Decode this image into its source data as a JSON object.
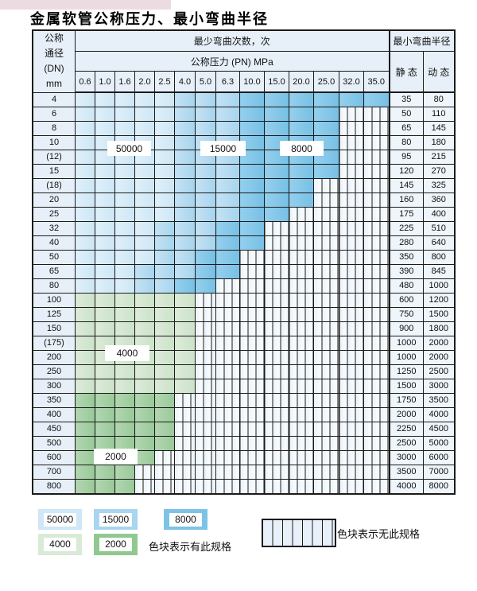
{
  "title": "金属软管公称压力、最小弯曲半径",
  "table": {
    "header": {
      "dn_label_lines": [
        "公称",
        "通径",
        "(DN)",
        "mm"
      ],
      "bend_cycles_label": "最少弯曲次数，次",
      "pressure_label": "公称压力 (PN) MPa",
      "radius_label": "最小弯曲半径",
      "static_label": "静 态",
      "dynamic_label": "动 态",
      "pn_columns": [
        "0.6",
        "1.0",
        "1.6",
        "2.0",
        "2.5",
        "4.0",
        "5.0",
        "6.3",
        "10.0",
        "15.0",
        "20.0",
        "25.0",
        "32.0",
        "35.0"
      ]
    },
    "rows": [
      {
        "dn": "4",
        "cells": [
          "50000",
          "50000",
          "50000",
          "50000",
          "50000",
          "15000",
          "15000",
          "15000",
          "8000",
          "8000",
          "8000",
          "8000",
          "8000",
          "8000"
        ],
        "static": "35",
        "dynamic": "80"
      },
      {
        "dn": "6",
        "cells": [
          "50000",
          "50000",
          "50000",
          "50000",
          "50000",
          "15000",
          "15000",
          "15000",
          "8000",
          "8000",
          "8000",
          "8000",
          "",
          ""
        ],
        "static": "50",
        "dynamic": "110"
      },
      {
        "dn": "8",
        "cells": [
          "50000",
          "50000",
          "50000",
          "50000",
          "50000",
          "15000",
          "15000",
          "15000",
          "8000",
          "8000",
          "8000",
          "8000",
          "",
          ""
        ],
        "static": "65",
        "dynamic": "145"
      },
      {
        "dn": "10",
        "cells": [
          "50000",
          "50000",
          "50000",
          "50000",
          "50000",
          "15000",
          "15000",
          "15000",
          "8000",
          "8000",
          "8000",
          "8000",
          "",
          ""
        ],
        "static": "80",
        "dynamic": "180"
      },
      {
        "dn": "(12)",
        "cells": [
          "50000",
          "50000",
          "50000",
          "50000",
          "50000",
          "15000",
          "15000",
          "15000",
          "8000",
          "8000",
          "8000",
          "8000",
          "",
          ""
        ],
        "static": "95",
        "dynamic": "215"
      },
      {
        "dn": "15",
        "cells": [
          "50000",
          "50000",
          "50000",
          "50000",
          "50000",
          "15000",
          "15000",
          "15000",
          "8000",
          "8000",
          "8000",
          "8000",
          "",
          ""
        ],
        "static": "120",
        "dynamic": "270"
      },
      {
        "dn": "(18)",
        "cells": [
          "50000",
          "50000",
          "50000",
          "50000",
          "50000",
          "15000",
          "15000",
          "15000",
          "8000",
          "8000",
          "8000",
          "",
          "",
          ""
        ],
        "static": "145",
        "dynamic": "325"
      },
      {
        "dn": "20",
        "cells": [
          "50000",
          "50000",
          "50000",
          "50000",
          "50000",
          "15000",
          "15000",
          "15000",
          "8000",
          "8000",
          "8000",
          "",
          "",
          ""
        ],
        "static": "160",
        "dynamic": "360"
      },
      {
        "dn": "25",
        "cells": [
          "50000",
          "50000",
          "50000",
          "50000",
          "50000",
          "15000",
          "15000",
          "15000",
          "8000",
          "8000",
          "",
          "",
          "",
          ""
        ],
        "static": "175",
        "dynamic": "400"
      },
      {
        "dn": "32",
        "cells": [
          "50000",
          "50000",
          "50000",
          "50000",
          "15000",
          "15000",
          "15000",
          "8000",
          "8000",
          "",
          "",
          "",
          "",
          ""
        ],
        "static": "225",
        "dynamic": "510"
      },
      {
        "dn": "40",
        "cells": [
          "50000",
          "50000",
          "50000",
          "50000",
          "15000",
          "15000",
          "15000",
          "8000",
          "8000",
          "",
          "",
          "",
          "",
          ""
        ],
        "static": "280",
        "dynamic": "640"
      },
      {
        "dn": "50",
        "cells": [
          "50000",
          "50000",
          "50000",
          "50000",
          "15000",
          "15000",
          "8000",
          "8000",
          "",
          "",
          "",
          "",
          "",
          ""
        ],
        "static": "350",
        "dynamic": "800"
      },
      {
        "dn": "65",
        "cells": [
          "50000",
          "50000",
          "50000",
          "15000",
          "15000",
          "15000",
          "8000",
          "8000",
          "",
          "",
          "",
          "",
          "",
          ""
        ],
        "static": "390",
        "dynamic": "845"
      },
      {
        "dn": "80",
        "cells": [
          "50000",
          "50000",
          "50000",
          "15000",
          "15000",
          "8000",
          "8000",
          "",
          "",
          "",
          "",
          "",
          "",
          ""
        ],
        "static": "480",
        "dynamic": "1000"
      },
      {
        "dn": "100",
        "cells": [
          "4000",
          "4000",
          "4000",
          "4000",
          "4000",
          "4000",
          "",
          "",
          "",
          "",
          "",
          "",
          "",
          ""
        ],
        "static": "600",
        "dynamic": "1200"
      },
      {
        "dn": "125",
        "cells": [
          "4000",
          "4000",
          "4000",
          "4000",
          "4000",
          "4000",
          "",
          "",
          "",
          "",
          "",
          "",
          "",
          ""
        ],
        "static": "750",
        "dynamic": "1500"
      },
      {
        "dn": "150",
        "cells": [
          "4000",
          "4000",
          "4000",
          "4000",
          "4000",
          "4000",
          "",
          "",
          "",
          "",
          "",
          "",
          "",
          ""
        ],
        "static": "900",
        "dynamic": "1800"
      },
      {
        "dn": "(175)",
        "cells": [
          "4000",
          "4000",
          "4000",
          "4000",
          "4000",
          "4000",
          "",
          "",
          "",
          "",
          "",
          "",
          "",
          ""
        ],
        "static": "1000",
        "dynamic": "2000"
      },
      {
        "dn": "200",
        "cells": [
          "4000",
          "4000",
          "4000",
          "4000",
          "4000",
          "4000",
          "",
          "",
          "",
          "",
          "",
          "",
          "",
          ""
        ],
        "static": "1000",
        "dynamic": "2000"
      },
      {
        "dn": "250",
        "cells": [
          "4000",
          "4000",
          "4000",
          "4000",
          "4000",
          "4000",
          "",
          "",
          "",
          "",
          "",
          "",
          "",
          ""
        ],
        "static": "1250",
        "dynamic": "2500"
      },
      {
        "dn": "300",
        "cells": [
          "4000",
          "4000",
          "4000",
          "4000",
          "4000",
          "4000",
          "",
          "",
          "",
          "",
          "",
          "",
          "",
          ""
        ],
        "static": "1500",
        "dynamic": "3000"
      },
      {
        "dn": "350",
        "cells": [
          "2000",
          "2000",
          "2000",
          "2000",
          "2000",
          "",
          "",
          "",
          "",
          "",
          "",
          "",
          "",
          ""
        ],
        "static": "1750",
        "dynamic": "3500"
      },
      {
        "dn": "400",
        "cells": [
          "2000",
          "2000",
          "2000",
          "2000",
          "2000",
          "",
          "",
          "",
          "",
          "",
          "",
          "",
          "",
          ""
        ],
        "static": "2000",
        "dynamic": "4000"
      },
      {
        "dn": "450",
        "cells": [
          "2000",
          "2000",
          "2000",
          "2000",
          "2000",
          "",
          "",
          "",
          "",
          "",
          "",
          "",
          "",
          ""
        ],
        "static": "2250",
        "dynamic": "4500"
      },
      {
        "dn": "500",
        "cells": [
          "2000",
          "2000",
          "2000",
          "2000",
          "2000",
          "",
          "",
          "",
          "",
          "",
          "",
          "",
          "",
          ""
        ],
        "static": "2500",
        "dynamic": "5000"
      },
      {
        "dn": "600",
        "cells": [
          "2000",
          "2000",
          "2000",
          "2000",
          "",
          "",
          "",
          "",
          "",
          "",
          "",
          "",
          "",
          ""
        ],
        "static": "3000",
        "dynamic": "6000"
      },
      {
        "dn": "700",
        "cells": [
          "2000",
          "2000",
          "2000",
          "",
          "",
          "",
          "",
          "",
          "",
          "",
          "",
          "",
          "",
          ""
        ],
        "static": "3500",
        "dynamic": "7000"
      },
      {
        "dn": "800",
        "cells": [
          "2000",
          "2000",
          "2000",
          "",
          "",
          "",
          "",
          "",
          "",
          "",
          "",
          "",
          "",
          ""
        ],
        "static": "4000",
        "dynamic": "8000"
      }
    ]
  },
  "region_labels": {
    "b50000": "50000",
    "b15000": "15000",
    "b8000": "8000",
    "b4000": "4000",
    "b2000": "2000"
  },
  "legend": {
    "items": [
      {
        "value": "50000",
        "color": "#cfe7f6"
      },
      {
        "value": "15000",
        "color": "#a9d6ee"
      },
      {
        "value": "8000",
        "color": "#7cc3e7"
      },
      {
        "value": "4000",
        "color": "#d9ead7"
      },
      {
        "value": "2000",
        "color": "#8fc98f"
      }
    ],
    "has_spec_text": "色块表示有此规格",
    "no_spec_text": "色块表示无此规格"
  },
  "colors": {
    "band_50000": "#cfe7f6",
    "band_15000": "#a9d6ee",
    "band_8000": "#7cc3e7",
    "band_4000": "#d9ead7",
    "band_2000": "#8fc98f",
    "no_spec_fill": "#eef5fb",
    "grid_line": "#1b1b1b",
    "header_fill": "#e7f0f8",
    "value_cell_fill": "#eef5fb",
    "top_strip": "#ecdce2"
  }
}
